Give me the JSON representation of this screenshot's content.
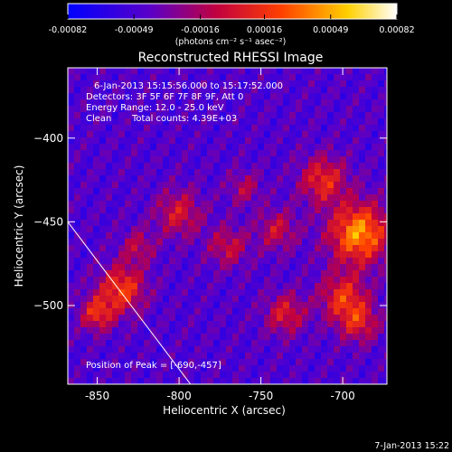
{
  "chart_data": {
    "type": "heatmap",
    "title": "Reconstructed RHESSI Image",
    "xlabel": "Heliocentric X (arcsec)",
    "ylabel": "Heliocentric Y (arcsec)",
    "xlim": [
      -868,
      -673
    ],
    "ylim": [
      -547,
      -358
    ],
    "xticks": [
      -850,
      -800,
      -750,
      -700
    ],
    "xtick_labels": [
      "-850",
      "-800",
      "-750",
      "-700"
    ],
    "yticks": [
      -400,
      -450,
      -500
    ],
    "ytick_labels": [
      "−400",
      "−450",
      "−500"
    ],
    "colorbar": {
      "min": -0.00082,
      "max": 0.00082,
      "ticks": [
        -0.00082,
        -0.00049,
        -0.00016,
        0.00016,
        0.00049,
        0.00082
      ],
      "tick_labels": [
        "-0.00082",
        "-0.00049",
        "-0.00016",
        "0.00016",
        "0.00049",
        "0.00082"
      ],
      "units_label": "(photons cm⁻² s⁻¹ asec⁻²)",
      "colormap": [
        "#0000ff",
        "#5a00c8",
        "#c00040",
        "#ff4000",
        "#ffd000",
        "#ffffff"
      ]
    },
    "annotations": {
      "time_range": "6-Jan-2013 15:15:56.000 to 15:17:52.000",
      "detectors": "Detectors: 3F 5F 6F 7F 8F 9F, Att 0",
      "energy_range": "Energy Range: 12.0 - 25.0 keV",
      "algorithm": "Clean",
      "total_counts": "Total counts: 4.39E+03",
      "peak_label": "Position of Peak = [-690,-457]",
      "peak_position": [
        -690,
        -457
      ],
      "limb_line": [
        [
          -868,
          -450
        ],
        [
          -793,
          -547
        ]
      ]
    },
    "footer_date": "7-Jan-2013 15:22",
    "grid": false
  }
}
